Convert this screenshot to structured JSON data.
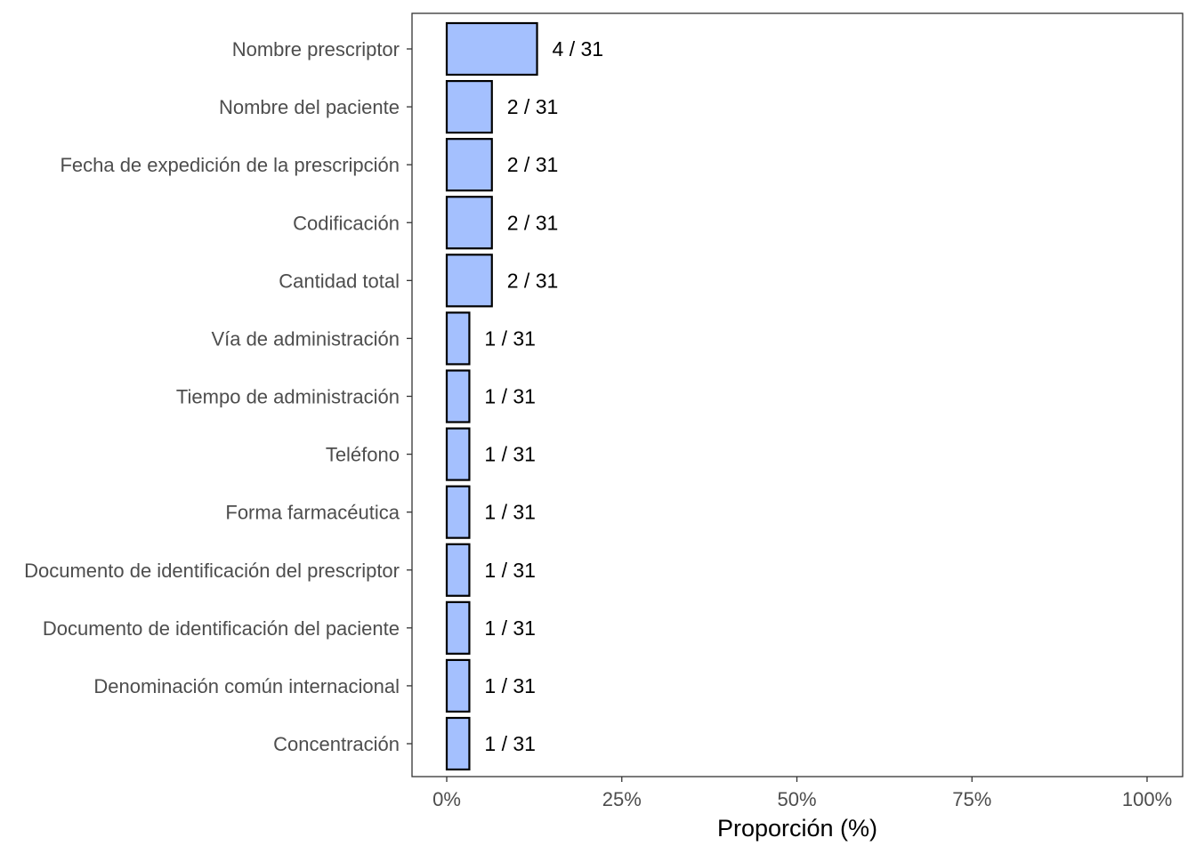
{
  "chart_data": {
    "type": "bar",
    "orientation": "horizontal",
    "title": "",
    "xlabel": "Proporción (%)",
    "ylabel": "",
    "xlim": [
      0,
      100
    ],
    "x_ticks": [
      0,
      25,
      50,
      75,
      100
    ],
    "x_tick_labels": [
      "0%",
      "25%",
      "50%",
      "75%",
      "100%"
    ],
    "grid": false,
    "legend": "none",
    "bar_fill": "#a4c0fe",
    "bar_stroke": "#000000",
    "categories": [
      "Nombre prescriptor",
      "Nombre del paciente",
      "Fecha de expedición de la prescripción",
      "Codificación",
      "Cantidad total",
      "Vía de administración",
      "Tiempo de administración",
      "Teléfono",
      "Forma farmacéutica",
      "Documento de identificación del prescriptor",
      "Documento de identificación del paciente",
      "Denominación común internacional",
      "Concentración"
    ],
    "values": [
      12.9,
      6.45,
      6.45,
      6.45,
      6.45,
      3.23,
      3.23,
      3.23,
      3.23,
      3.23,
      3.23,
      3.23,
      3.23
    ],
    "data_labels": [
      "4 / 31",
      "2 / 31",
      "2 / 31",
      "2 / 31",
      "2 / 31",
      "1 / 31",
      "1 / 31",
      "1 / 31",
      "1 / 31",
      "1 / 31",
      "1 / 31",
      "1 / 31",
      "1 / 31"
    ]
  }
}
